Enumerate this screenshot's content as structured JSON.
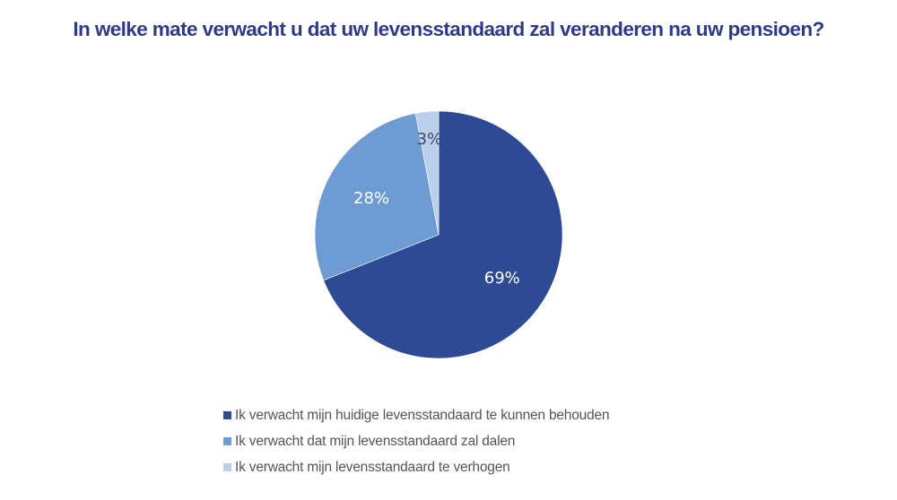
{
  "title": "In welke mate verwacht u dat uw levensstandaard zal veranderen na uw pensioen?",
  "chart_data": {
    "type": "pie",
    "title": "In welke mate verwacht u dat uw levensstandaard zal veranderen na uw pensioen?",
    "categories": [
      "Ik verwacht mijn huidige levensstandaard te kunnen behouden",
      "Ik verwacht dat mijn levensstandaard zal dalen",
      "Ik verwacht mijn levensstandaard te verhogen"
    ],
    "values": [
      69,
      28,
      3
    ],
    "labels": [
      "69%",
      "28%",
      "3%"
    ],
    "colors": [
      "#2f4a94",
      "#6f9bd3",
      "#b9cfeb"
    ],
    "label_colors": [
      "#ffffff",
      "#ffffff",
      "#3a4a66"
    ],
    "legend_position": "bottom",
    "start_angle": "12 o'clock, clockwise"
  },
  "legend": {
    "items": [
      {
        "label": "Ik verwacht mijn huidige levensstandaard te kunnen behouden",
        "color": "#2f4a94"
      },
      {
        "label": "Ik verwacht dat mijn levensstandaard zal dalen",
        "color": "#6f9bd3"
      },
      {
        "label": "Ik verwacht mijn levensstandaard te verhogen",
        "color": "#b9cfeb"
      }
    ]
  }
}
